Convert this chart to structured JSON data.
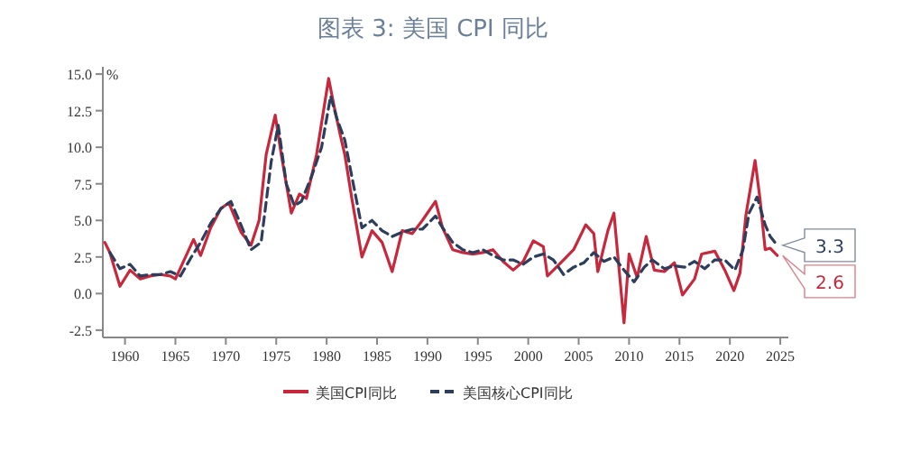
{
  "chart_data": {
    "type": "line",
    "title": "图表 3:  美国  CPI  同比",
    "ylabel": "%",
    "xlim": [
      1957.8,
      2025.8
    ],
    "xticks": [
      1960,
      1965,
      1970,
      1975,
      1980,
      1985,
      1990,
      1995,
      2000,
      2005,
      2010,
      2015,
      2020,
      2025
    ],
    "ylim": [
      -3,
      15.5
    ],
    "yticks": [
      {
        "value": -2.5,
        "label": "-2.5"
      },
      {
        "value": 0,
        "label": "0.0"
      },
      {
        "value": 2.5,
        "label": "2.5"
      },
      {
        "value": 5,
        "label": "5.0"
      },
      {
        "value": 7.5,
        "label": "7.5"
      },
      {
        "value": 10,
        "label": "10.0"
      },
      {
        "value": 12.5,
        "label": "12.5"
      },
      {
        "value": 15,
        "label": "15.0"
      }
    ],
    "grid": false,
    "legend": "bottom",
    "series": [
      {
        "name": "美国CPI同比",
        "color": "#c8283c",
        "line_style": "solid",
        "x": [
          1958.0,
          1958.5,
          1959.5,
          1960.5,
          1961.5,
          1962.5,
          1963.5,
          1964.5,
          1965.0,
          1966.0,
          1966.8,
          1967.5,
          1968.5,
          1969.5,
          1970.3,
          1971.5,
          1972.5,
          1973.3,
          1974.0,
          1974.9,
          1975.5,
          1976.5,
          1977.3,
          1978.0,
          1979.0,
          1980.2,
          1980.8,
          1981.3,
          1981.8,
          1982.5,
          1983.5,
          1984.5,
          1985.5,
          1986.5,
          1987.5,
          1988.5,
          1989.5,
          1990.8,
          1991.5,
          1992.5,
          1993.5,
          1994.5,
          1995.5,
          1996.5,
          1997.5,
          1998.5,
          1999.5,
          2000.5,
          2001.5,
          2001.9,
          2002.5,
          2003.5,
          2004.5,
          2005.7,
          2006.5,
          2006.9,
          2007.9,
          2008.5,
          2009.5,
          2010.0,
          2010.8,
          2011.7,
          2012.5,
          2013.5,
          2014.5,
          2015.3,
          2016.5,
          2017.2,
          2018.5,
          2019.5,
          2020.4,
          2021.0,
          2021.6,
          2022.5,
          2023.0,
          2023.5,
          2024.0,
          2024.7
        ],
        "values": [
          3.5,
          2.8,
          0.5,
          1.6,
          1.0,
          1.2,
          1.3,
          1.2,
          1.0,
          2.5,
          3.7,
          2.6,
          4.5,
          5.8,
          6.2,
          4.2,
          3.3,
          5.0,
          9.5,
          12.2,
          9.5,
          5.5,
          6.8,
          6.5,
          9.5,
          14.7,
          12.6,
          11.0,
          9.5,
          6.5,
          2.5,
          4.3,
          3.5,
          1.5,
          4.3,
          4.1,
          5.0,
          6.3,
          4.5,
          3.0,
          2.8,
          2.7,
          2.8,
          3.0,
          2.2,
          1.6,
          2.2,
          3.6,
          3.2,
          1.2,
          1.6,
          2.3,
          3.0,
          4.7,
          4.1,
          1.5,
          4.3,
          5.5,
          -2.0,
          2.7,
          1.1,
          3.9,
          1.6,
          1.5,
          2.1,
          -0.1,
          1.0,
          2.7,
          2.9,
          1.6,
          0.2,
          1.4,
          5.4,
          9.1,
          6.4,
          3.0,
          3.1,
          2.6
        ]
      },
      {
        "name": "美国核心CPI同比",
        "color": "#2c3e5c",
        "line_style": "dashed",
        "x": [
          1958.5,
          1959.5,
          1960.5,
          1961.5,
          1962.5,
          1963.5,
          1964.5,
          1965.5,
          1966.5,
          1967.5,
          1968.5,
          1969.5,
          1970.5,
          1971.5,
          1972.5,
          1973.5,
          1974.5,
          1975.2,
          1976.0,
          1976.8,
          1977.5,
          1978.5,
          1979.5,
          1980.4,
          1981.0,
          1981.8,
          1982.5,
          1983.5,
          1984.5,
          1985.5,
          1986.5,
          1987.5,
          1988.5,
          1989.5,
          1990.8,
          1991.5,
          1992.5,
          1993.5,
          1994.5,
          1995.5,
          1996.5,
          1997.5,
          1998.5,
          1999.5,
          2000.5,
          2001.5,
          2002.5,
          2003.5,
          2004.5,
          2005.5,
          2006.5,
          2007.5,
          2008.5,
          2009.5,
          2010.5,
          2011.5,
          2012.3,
          2013.5,
          2014.5,
          2015.5,
          2016.5,
          2017.5,
          2018.5,
          2019.5,
          2020.5,
          2021.3,
          2021.9,
          2022.7,
          2023.5,
          2024.0,
          2024.7
        ],
        "values": [
          2.8,
          1.7,
          2.0,
          1.2,
          1.3,
          1.3,
          1.5,
          1.2,
          2.4,
          3.5,
          4.8,
          5.8,
          6.3,
          4.7,
          3.0,
          3.5,
          9.0,
          11.5,
          7.5,
          6.0,
          6.3,
          8.0,
          10.0,
          13.5,
          12.0,
          10.5,
          8.0,
          4.5,
          5.0,
          4.3,
          3.9,
          4.2,
          4.4,
          4.4,
          5.3,
          4.5,
          3.5,
          3.0,
          2.8,
          3.0,
          2.6,
          2.3,
          2.3,
          2.0,
          2.5,
          2.7,
          2.3,
          1.3,
          1.8,
          2.1,
          2.8,
          2.2,
          2.5,
          1.6,
          0.8,
          1.8,
          2.3,
          1.7,
          1.9,
          1.8,
          2.2,
          1.7,
          2.3,
          2.3,
          1.6,
          3.0,
          5.5,
          6.6,
          4.7,
          3.9,
          3.3
        ]
      }
    ],
    "annotations": [
      {
        "text": "3.3",
        "x": 2024.7,
        "y": 3.3
      },
      {
        "text": "2.6",
        "x": 2024.7,
        "y": 2.6
      }
    ]
  }
}
